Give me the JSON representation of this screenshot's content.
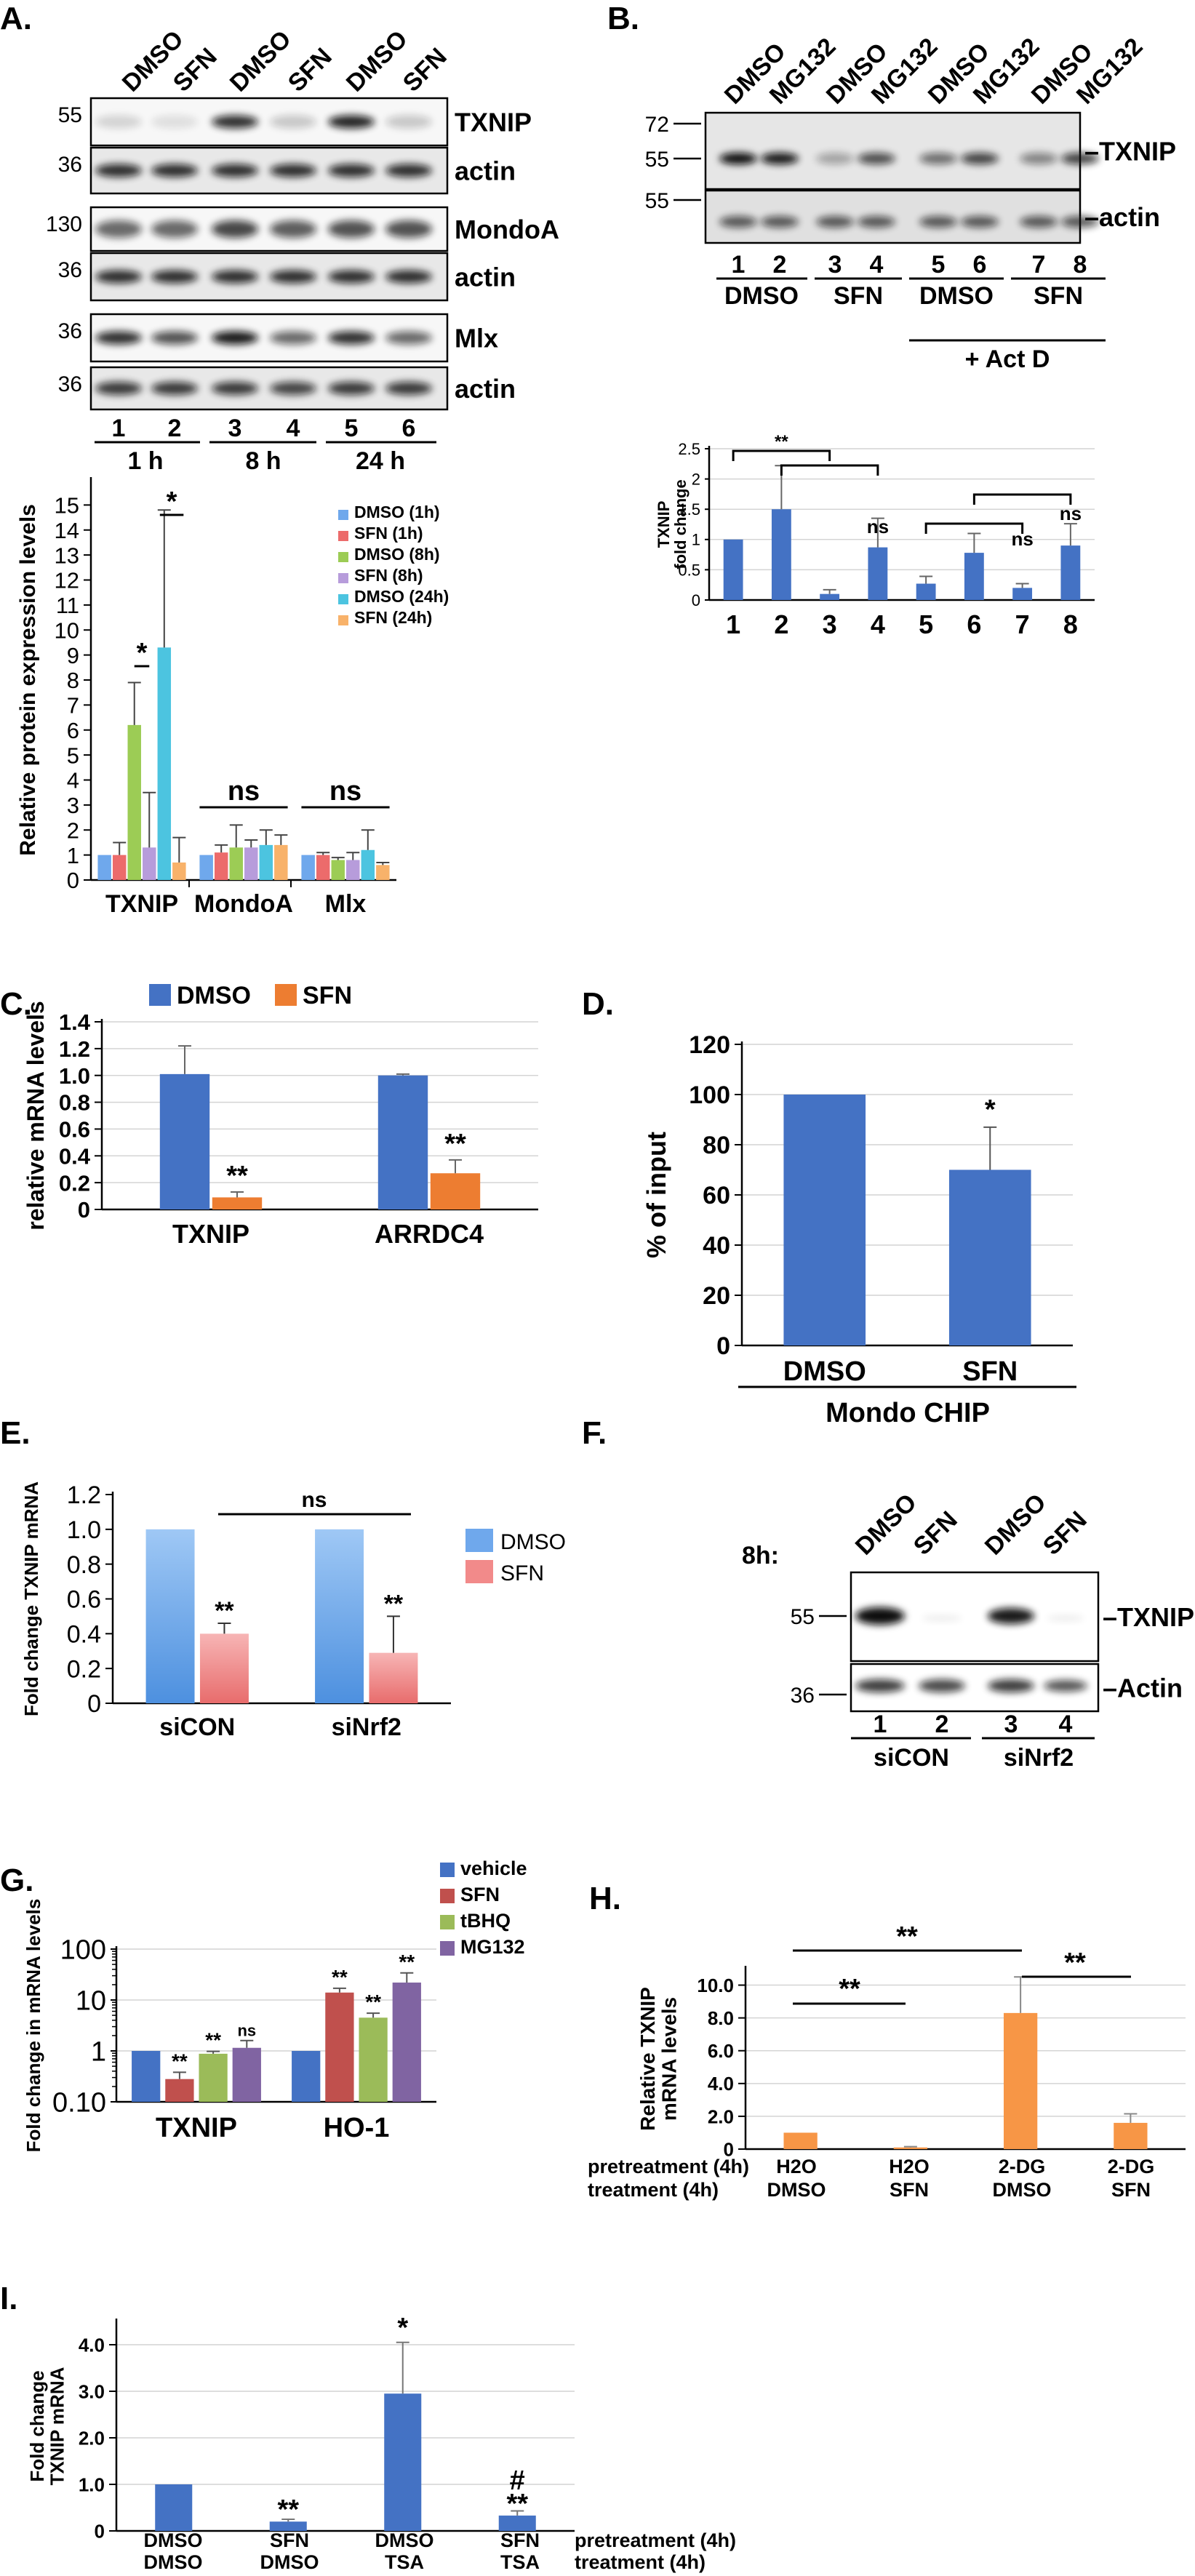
{
  "panels": {
    "A": {
      "letter": "A.",
      "lanes": [
        "DMSO",
        "SFN",
        "DMSO",
        "SFN",
        "DMSO",
        "SFN"
      ],
      "blots": [
        {
          "label": "TXNIP",
          "mw": [
            "55"
          ]
        },
        {
          "label": "actin",
          "mw": [
            "36"
          ]
        },
        {
          "label": "MondoA",
          "mw": [
            "130"
          ]
        },
        {
          "label": "actin",
          "mw": [
            "36"
          ]
        },
        {
          "label": "Mlx",
          "mw": [
            "36"
          ]
        },
        {
          "label": "actin",
          "mw": [
            "36"
          ]
        }
      ],
      "lane_numbers": [
        "1",
        "2",
        "3",
        "4",
        "5",
        "6"
      ],
      "timepoints": [
        "1 h",
        "8 h",
        "24 h"
      ]
    },
    "B": {
      "letter": "B.",
      "lanes": [
        "DMSO",
        "MG132",
        "DMSO",
        "MG132",
        "DMSO",
        "MG132",
        "DMSO",
        "MG132"
      ],
      "blots": [
        {
          "label": "TXNIP",
          "mw": [
            "72",
            "55"
          ]
        },
        {
          "label": "actin",
          "mw": [
            "55"
          ]
        }
      ],
      "lane_numbers": [
        "1",
        "2",
        "3",
        "4",
        "5",
        "6",
        "7",
        "8"
      ],
      "groups": [
        "DMSO",
        "SFN",
        "DMSO",
        "SFN"
      ],
      "actd": "+ Act D"
    },
    "C": {
      "letter": "C."
    },
    "D": {
      "letter": "D.",
      "underline_label": "Mondo CHIP"
    },
    "E": {
      "letter": "E."
    },
    "F": {
      "letter": "F.",
      "time_label": "8h:",
      "lanes": [
        "DMSO",
        "SFN",
        "DMSO",
        "SFN"
      ],
      "blots": [
        {
          "label": "TXNIP",
          "mw": [
            "55"
          ]
        },
        {
          "label": "Actin",
          "mw": [
            "36"
          ]
        }
      ],
      "lane_numbers": [
        "1",
        "2",
        "3",
        "4"
      ],
      "groups": [
        "siCON",
        "siNrf2"
      ]
    },
    "G": {
      "letter": "G."
    },
    "H": {
      "letter": "H.",
      "row_labels": [
        "pretreatment (4h)",
        "treatment (4h)"
      ],
      "pretreatment": [
        "H2O",
        "H2O",
        "2-DG",
        "2-DG"
      ],
      "treatment": [
        "DMSO",
        "SFN",
        "DMSO",
        "SFN"
      ]
    },
    "I": {
      "letter": "I.",
      "row_labels": [
        "pretreatment (4h)",
        "treatment (4h)"
      ],
      "pretreatment": [
        "DMSO",
        "SFN",
        "DMSO",
        "SFN"
      ],
      "treatment": [
        "DMSO",
        "DMSO",
        "TSA",
        "TSA"
      ]
    }
  },
  "chart_data": [
    {
      "id": "A_quant",
      "type": "bar",
      "ylabel": "Relative protein expression levels",
      "ylim": [
        0,
        16
      ],
      "yticks": [
        0,
        1,
        2,
        3,
        4,
        5,
        6,
        7,
        8,
        9,
        10,
        11,
        12,
        13,
        14,
        15
      ],
      "grid": false,
      "categories": [
        "TXNIP",
        "MondoA",
        "Mlx"
      ],
      "series": [
        {
          "name": "DMSO (1h)",
          "color": "#6fa8ec",
          "values": [
            1.0,
            1.0,
            1.0
          ],
          "errors": [
            0,
            0,
            0
          ]
        },
        {
          "name": "SFN (1h)",
          "color": "#ec6b6b",
          "values": [
            1.0,
            1.1,
            1.0
          ],
          "errors": [
            0.5,
            0.3,
            0.1
          ]
        },
        {
          "name": "DMSO (8h)",
          "color": "#9ccc55",
          "values": [
            6.2,
            1.3,
            0.8
          ],
          "errors": [
            1.7,
            0.9,
            0.1
          ]
        },
        {
          "name": "SFN (8h)",
          "color": "#b79cdb",
          "values": [
            1.3,
            1.3,
            0.8
          ],
          "errors": [
            2.2,
            0.3,
            0.3
          ]
        },
        {
          "name": "DMSO (24h)",
          "color": "#4cc4e0",
          "values": [
            9.3,
            1.4,
            1.2
          ],
          "errors": [
            5.5,
            0.6,
            0.8
          ]
        },
        {
          "name": "SFN (24h)",
          "color": "#f8b26a",
          "values": [
            0.7,
            1.4,
            0.6
          ],
          "errors": [
            1.0,
            0.4,
            0.1
          ]
        }
      ],
      "legend_position": "top-right",
      "annotations": [
        "*",
        "*",
        "ns",
        "ns"
      ]
    },
    {
      "id": "B_quant",
      "type": "bar",
      "ylabel": "TXNIP fold change",
      "ylim": [
        0,
        2.5
      ],
      "yticks": [
        "0",
        "0.5",
        "1",
        "1.5",
        "2",
        "2.5"
      ],
      "grid": true,
      "categories": [
        "1",
        "2",
        "3",
        "4",
        "5",
        "6",
        "7",
        "8"
      ],
      "series": [
        {
          "name": "TXNIP",
          "color": "#4472c4",
          "values": [
            1.0,
            1.5,
            0.1,
            0.87,
            0.27,
            0.78,
            0.2,
            0.9
          ],
          "errors": [
            0,
            0.72,
            0.07,
            0.48,
            0.12,
            0.32,
            0.07,
            0.36
          ]
        }
      ],
      "annotations": [
        "**",
        "ns",
        "ns",
        "ns"
      ]
    },
    {
      "id": "C_chart",
      "type": "bar",
      "ylabel": "relative mRNA levels",
      "ylim": [
        0,
        1.4
      ],
      "yticks": [
        "0",
        "0.2",
        "0.4",
        "0.6",
        "0.8",
        "1.0",
        "1.2",
        "1.4"
      ],
      "grid": true,
      "categories": [
        "TXNIP",
        "ARRDC4"
      ],
      "series": [
        {
          "name": "DMSO",
          "color": "#4472c4",
          "values": [
            1.01,
            1.0
          ],
          "errors": [
            0.21,
            0.01
          ]
        },
        {
          "name": "SFN",
          "color": "#ed7d31",
          "values": [
            0.09,
            0.27
          ],
          "errors": [
            0.04,
            0.1
          ]
        }
      ],
      "legend_position": "top",
      "annotations": [
        "**",
        "**"
      ]
    },
    {
      "id": "D_chart",
      "type": "bar",
      "ylabel": "% of input",
      "ylim": [
        0,
        120
      ],
      "yticks": [
        "0",
        "20",
        "40",
        "60",
        "80",
        "100",
        "120"
      ],
      "grid": true,
      "categories": [
        "DMSO",
        "SFN"
      ],
      "series": [
        {
          "name": "Mondo CHIP",
          "color": "#4472c4",
          "values": [
            100,
            70
          ],
          "errors": [
            0,
            17
          ]
        }
      ],
      "annotations": [
        "*"
      ]
    },
    {
      "id": "E_chart",
      "type": "bar",
      "ylabel": "Fold change TXNIP mRNA",
      "ylim": [
        0,
        1.2
      ],
      "yticks": [
        "0",
        "0.2",
        "0.4",
        "0.6",
        "0.8",
        "1.0",
        "1.2"
      ],
      "grid": false,
      "categories": [
        "siCON",
        "siNrf2"
      ],
      "series": [
        {
          "name": "DMSO",
          "color": "#6fa8ec",
          "values": [
            1.0,
            1.0
          ],
          "errors": [
            0,
            0
          ]
        },
        {
          "name": "SFN",
          "color": "#f28a8a",
          "values": [
            0.4,
            0.29
          ],
          "errors": [
            0.06,
            0.21
          ]
        }
      ],
      "legend_position": "right",
      "annotations": [
        "ns",
        "**",
        "**"
      ]
    },
    {
      "id": "G_chart",
      "type": "bar",
      "scale": "log",
      "ylabel": "Fold change in mRNA levels",
      "ylim": [
        0.1,
        100
      ],
      "yticks": [
        "0.10",
        "1",
        "10",
        "100"
      ],
      "grid": true,
      "categories": [
        "TXNIP",
        "HO-1"
      ],
      "series": [
        {
          "name": "vehicle",
          "color": "#4472c4",
          "values": [
            1,
            1
          ],
          "errors": [
            0,
            0
          ]
        },
        {
          "name": "SFN",
          "color": "#c0504d",
          "values": [
            0.28,
            14
          ],
          "errors": [
            0.1,
            3
          ]
        },
        {
          "name": "tBHQ",
          "color": "#9bbb59",
          "values": [
            0.88,
            4.5
          ],
          "errors": [
            0.1,
            1
          ]
        },
        {
          "name": "MG132",
          "color": "#8064a2",
          "values": [
            1.15,
            22
          ],
          "errors": [
            0.45,
            12
          ]
        }
      ],
      "legend_position": "top-right",
      "annotations": [
        "**",
        "**",
        "ns",
        "**",
        "**",
        "**"
      ]
    },
    {
      "id": "H_chart",
      "type": "bar",
      "ylabel": "Relative TXNIP mRNA levels",
      "ylim": [
        0,
        11
      ],
      "yticks": [
        "0",
        "2.0",
        "4.0",
        "6.0",
        "8.0",
        "10.0"
      ],
      "grid": true,
      "categories": [
        "H2O/DMSO",
        "H2O/SFN",
        "2-DG/DMSO",
        "2-DG/SFN"
      ],
      "series": [
        {
          "name": "TXNIP",
          "color": "#f79646",
          "values": [
            1.0,
            0.1,
            8.3,
            1.6
          ],
          "errors": [
            0,
            0.05,
            2.2,
            0.55
          ]
        }
      ],
      "annotations": [
        "**",
        "**",
        "**"
      ]
    },
    {
      "id": "I_chart",
      "type": "bar",
      "ylabel": "Fold change TXNIP mRNA",
      "ylim": [
        0,
        4.5
      ],
      "yticks": [
        "0",
        "1.0",
        "2.0",
        "3.0",
        "4.0"
      ],
      "grid": true,
      "categories": [
        "DMSO/DMSO",
        "SFN/DMSO",
        "DMSO/TSA",
        "SFN/TSA"
      ],
      "series": [
        {
          "name": "TXNIP",
          "color": "#4472c4",
          "values": [
            1.0,
            0.2,
            2.95,
            0.33
          ],
          "errors": [
            0,
            0.05,
            1.1,
            0.1
          ]
        }
      ],
      "annotations": [
        "**",
        "*",
        "**",
        "#"
      ]
    }
  ]
}
